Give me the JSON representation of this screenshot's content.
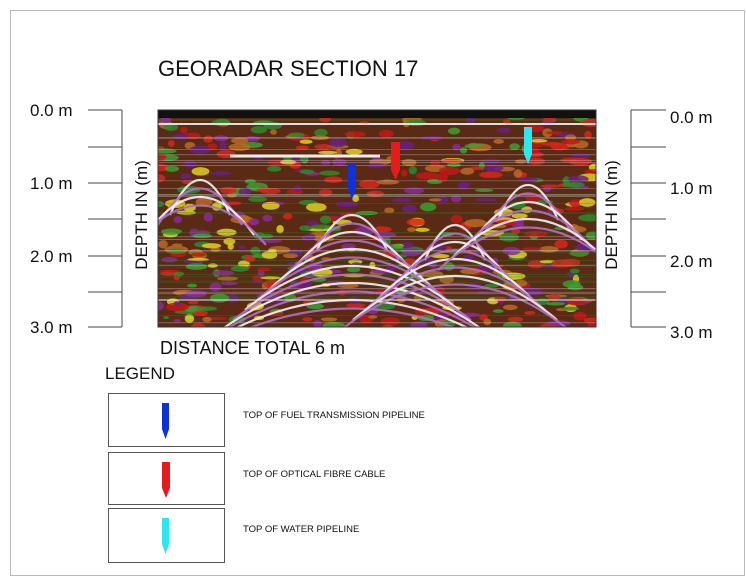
{
  "title": "GEORADAR SECTION  17",
  "depth_axis": {
    "label": "DEPTH IN (m)",
    "ticks": [
      "0.0 m",
      "1.0 m",
      "2.0 m",
      "3.0 m"
    ]
  },
  "distance_label": "DISTANCE TOTAL  6 m",
  "legend": {
    "title": "LEGEND",
    "items": [
      {
        "label": "TOP OF FUEL TRANSMISSION PIPELINE"
      },
      {
        "label": "TOP OF OPTICAL FIBRE CABLE"
      },
      {
        "label": "TOP OF WATER PIPELINE"
      }
    ]
  }
}
